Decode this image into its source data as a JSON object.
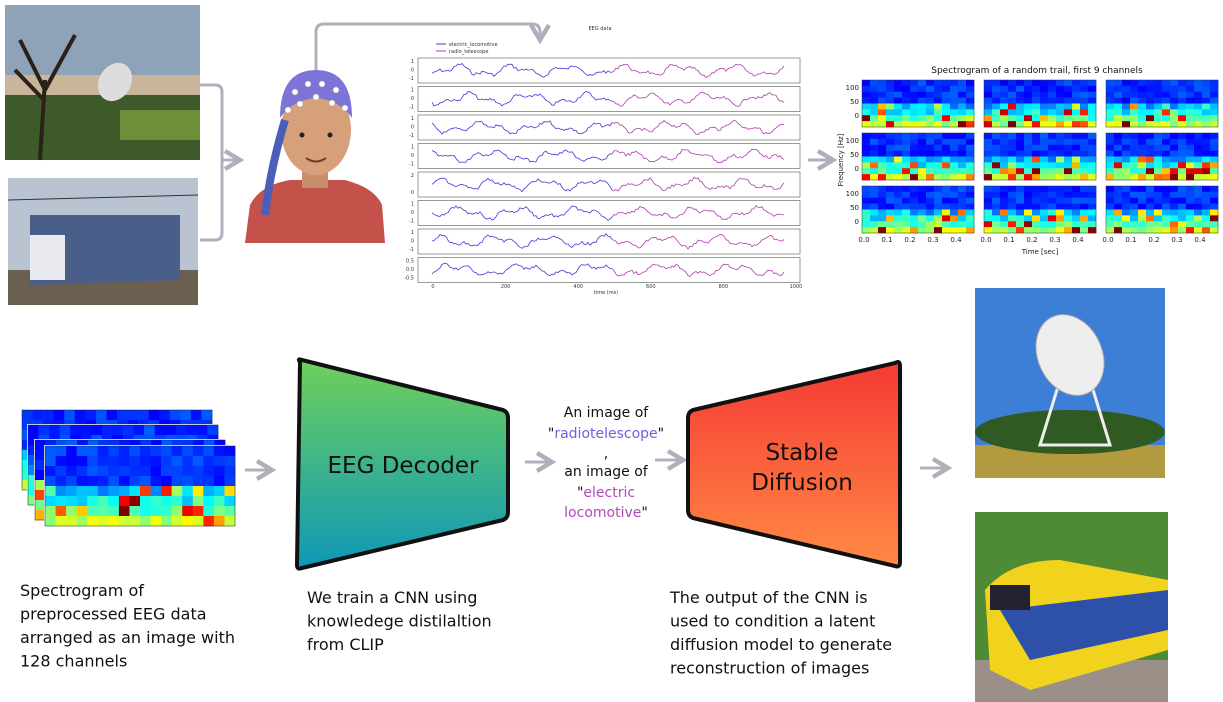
{
  "eeg_plot": {
    "title": "EEG data",
    "legend": [
      {
        "name": "electric_locomotive",
        "color": "#3b3bd6"
      },
      {
        "name": "radio_telescope",
        "color": "#b03cb0"
      }
    ],
    "channel_yticks": [
      [
        "1",
        "0",
        "-1"
      ],
      [
        "1",
        "0",
        "-1"
      ],
      [
        "1",
        "0",
        "-1"
      ],
      [
        "1",
        "0",
        "-1"
      ],
      [
        "2",
        "0"
      ],
      [
        "1",
        "0",
        "-1"
      ],
      [
        "1",
        "0",
        "-1"
      ],
      [
        "0.5",
        "0.0",
        "-0.5"
      ]
    ],
    "xticks": [
      "0",
      "200",
      "400",
      "600",
      "800",
      "1000"
    ],
    "xlabel": "time (ms)"
  },
  "spectrogram": {
    "title": "Spectrogram of a random trail, first 9 channels",
    "ylabel": "Frequency [Hz]",
    "xlabel": "Time [sec]",
    "yticks": [
      "100",
      "50",
      "0"
    ],
    "xticks": [
      "0.0",
      "0.1",
      "0.2",
      "0.3",
      "0.4"
    ]
  },
  "decoder": {
    "label": "EEG Decoder"
  },
  "diffusion": {
    "label": "Stable Diffusion"
  },
  "prompt": {
    "lines": [
      "An image of",
      "\"",
      "radiotelescope",
      "\"",
      ",",
      "an image of",
      "\"",
      "electric",
      "locomotive",
      "\""
    ]
  },
  "captions": {
    "input": [
      "Spectrogram of",
      "preprocessed EEG data",
      "arranged as an image with",
      "128 channels"
    ],
    "decoder": [
      "We train a CNN using",
      "knowledege distilaltion",
      "from CLIP"
    ],
    "diffusion": [
      "The output of the CNN is",
      "used to condition a latent",
      "diffusion model to generate",
      "reconstruction of images"
    ]
  }
}
